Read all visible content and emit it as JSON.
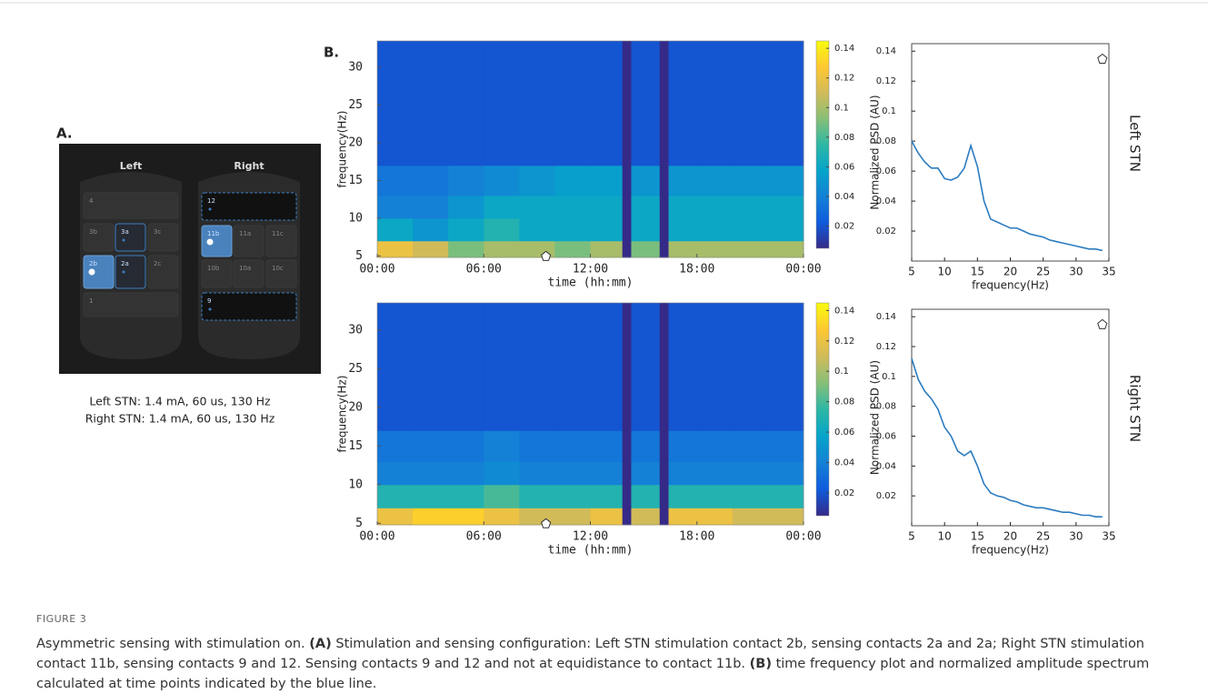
{
  "panel_labels": [
    "A.",
    "B."
  ],
  "panel_a": {
    "left": "Left",
    "right": "Right",
    "left_contacts": [
      "4",
      "3b",
      "3a",
      "3c",
      "2b",
      "2a",
      "2c",
      "1"
    ],
    "right_contacts": [
      "12",
      "11b",
      "11a",
      "11c",
      "10b",
      "10a",
      "10c",
      "9"
    ],
    "settings": [
      "Left STN: 1.4 mA, 60 us, 130 Hz",
      "Right STN: 1.4 mA, 60 us, 130 Hz"
    ]
  },
  "chart_data": [
    {
      "type": "heatmap",
      "colormap": "parula",
      "x_edges": [
        0,
        2,
        4,
        6,
        8,
        10,
        12,
        13.8,
        14.3,
        15.9,
        16.4,
        18,
        20,
        22,
        24
      ],
      "y_edges": [
        4.8,
        7,
        10,
        13,
        17,
        33.5
      ],
      "z": [
        [
          0.12,
          0.11,
          0.09,
          0.1,
          0.1,
          0.09,
          0.1,
          0.005,
          0.09,
          0.005,
          0.1,
          0.1,
          0.1,
          0.1
        ],
        [
          0.06,
          0.05,
          0.06,
          0.07,
          0.06,
          0.06,
          0.06,
          0.005,
          0.06,
          0.005,
          0.06,
          0.06,
          0.06,
          0.06
        ],
        [
          0.04,
          0.04,
          0.05,
          0.06,
          0.06,
          0.06,
          0.06,
          0.005,
          0.06,
          0.005,
          0.06,
          0.06,
          0.06,
          0.06
        ],
        [
          0.035,
          0.035,
          0.04,
          0.045,
          0.05,
          0.055,
          0.055,
          0.005,
          0.05,
          0.005,
          0.05,
          0.05,
          0.05,
          0.05
        ],
        [
          0.02,
          0.02,
          0.02,
          0.02,
          0.02,
          0.02,
          0.02,
          0.005,
          0.02,
          0.005,
          0.02,
          0.02,
          0.02,
          0.02
        ]
      ],
      "xlim": [
        0,
        24
      ],
      "xticks": [
        {
          "value": 0,
          "label": "00:00"
        },
        {
          "value": 6,
          "label": "06:00"
        },
        {
          "value": 12,
          "label": "12:00"
        },
        {
          "value": 18,
          "label": "18:00"
        },
        {
          "value": 24,
          "label": "00:00"
        }
      ],
      "ylim": [
        4.8,
        33.5
      ],
      "yticks": [
        5,
        10,
        15,
        20,
        25,
        30
      ],
      "zlim": [
        0.005,
        0.145
      ],
      "zticks": [
        0.02,
        0.04,
        0.06,
        0.08,
        0.1,
        0.12,
        0.14
      ],
      "xlabel": "time (hh:mm)",
      "ylabel": "frequency(Hz)",
      "marker": {
        "x": 9.5,
        "y": 5
      }
    },
    {
      "type": "heatmap",
      "colormap": "parula",
      "x_edges": [
        0,
        2,
        4,
        6,
        8,
        10,
        12,
        13.8,
        14.3,
        15.9,
        16.4,
        18,
        20,
        22,
        24
      ],
      "y_edges": [
        4.8,
        7,
        10,
        13,
        17,
        33.5
      ],
      "z": [
        [
          0.12,
          0.13,
          0.13,
          0.12,
          0.11,
          0.11,
          0.12,
          0.005,
          0.11,
          0.005,
          0.12,
          0.12,
          0.11,
          0.11
        ],
        [
          0.07,
          0.07,
          0.07,
          0.08,
          0.07,
          0.07,
          0.07,
          0.005,
          0.07,
          0.005,
          0.07,
          0.07,
          0.07,
          0.07
        ],
        [
          0.04,
          0.04,
          0.04,
          0.045,
          0.04,
          0.04,
          0.04,
          0.005,
          0.04,
          0.005,
          0.04,
          0.04,
          0.04,
          0.04
        ],
        [
          0.035,
          0.035,
          0.035,
          0.04,
          0.035,
          0.035,
          0.035,
          0.005,
          0.035,
          0.005,
          0.035,
          0.035,
          0.035,
          0.035
        ],
        [
          0.02,
          0.02,
          0.02,
          0.02,
          0.02,
          0.02,
          0.02,
          0.005,
          0.02,
          0.005,
          0.02,
          0.02,
          0.02,
          0.02
        ]
      ],
      "xlim": [
        0,
        24
      ],
      "xticks": [
        {
          "value": 0,
          "label": "00:00"
        },
        {
          "value": 6,
          "label": "06:00"
        },
        {
          "value": 12,
          "label": "12:00"
        },
        {
          "value": 18,
          "label": "18:00"
        },
        {
          "value": 24,
          "label": "00:00"
        }
      ],
      "ylim": [
        4.8,
        33.5
      ],
      "yticks": [
        5,
        10,
        15,
        20,
        25,
        30
      ],
      "zlim": [
        0.005,
        0.145
      ],
      "zticks": [
        0.02,
        0.04,
        0.06,
        0.08,
        0.1,
        0.12,
        0.14
      ],
      "xlabel": "time (hh:mm)",
      "ylabel": "frequency(Hz)",
      "marker": {
        "x": 9.5,
        "y": 5
      }
    },
    {
      "type": "line",
      "title": "Left STN",
      "color": "#2b7bbf",
      "x": [
        5,
        6,
        7,
        8,
        9,
        10,
        11,
        12,
        13,
        14,
        15,
        16,
        17,
        18,
        19,
        20,
        21,
        22,
        23,
        24,
        25,
        26,
        27,
        28,
        29,
        30,
        31,
        32,
        33,
        34
      ],
      "values": [
        0.08,
        0.072,
        0.066,
        0.062,
        0.062,
        0.055,
        0.054,
        0.056,
        0.062,
        0.077,
        0.063,
        0.04,
        0.028,
        0.026,
        0.024,
        0.022,
        0.022,
        0.02,
        0.018,
        0.017,
        0.016,
        0.014,
        0.013,
        0.012,
        0.011,
        0.01,
        0.009,
        0.008,
        0.008,
        0.007
      ],
      "xlim": [
        5,
        35
      ],
      "xticks": [
        5,
        10,
        15,
        20,
        25,
        30,
        35
      ],
      "ylim": [
        0,
        0.145
      ],
      "yticks": [
        0.02,
        0.04,
        0.06,
        0.08,
        0.1,
        0.12,
        0.14
      ],
      "xlabel": "frequency(Hz)",
      "ylabel": "Normalized PSD (AU)",
      "marker": {
        "x": 34,
        "y": 0.135
      }
    },
    {
      "type": "line",
      "title": "Right STN",
      "color": "#2b7bbf",
      "x": [
        5,
        6,
        7,
        8,
        9,
        10,
        11,
        12,
        13,
        14,
        15,
        16,
        17,
        18,
        19,
        20,
        21,
        22,
        23,
        24,
        25,
        26,
        27,
        28,
        29,
        30,
        31,
        32,
        33,
        34
      ],
      "values": [
        0.112,
        0.098,
        0.09,
        0.085,
        0.078,
        0.066,
        0.06,
        0.05,
        0.047,
        0.05,
        0.04,
        0.028,
        0.022,
        0.02,
        0.019,
        0.017,
        0.016,
        0.014,
        0.013,
        0.012,
        0.012,
        0.011,
        0.01,
        0.009,
        0.009,
        0.008,
        0.007,
        0.007,
        0.006,
        0.006
      ],
      "xlim": [
        5,
        35
      ],
      "xticks": [
        5,
        10,
        15,
        20,
        25,
        30,
        35
      ],
      "ylim": [
        0,
        0.145
      ],
      "yticks": [
        0.02,
        0.04,
        0.06,
        0.08,
        0.1,
        0.12,
        0.14
      ],
      "xlabel": "frequency(Hz)",
      "ylabel": "Normalized PSD (AU)",
      "marker": {
        "x": 34,
        "y": 0.135
      }
    }
  ],
  "caption": {
    "label": "FIGURE 3",
    "parts": [
      "Asymmetric sensing with stimulation on. ",
      "(A)",
      " Stimulation and sensing configuration: Left STN stimulation contact 2b, sensing contacts 2a and 2a; Right STN stimulation contact 11b, sensing contacts 9 and 12. Sensing contacts 9 and 12 and not at equidistance to contact 11b. ",
      "(B)",
      " time frequency plot and normalized amplitude spectrum calculated at time points indicated by the blue line."
    ]
  }
}
